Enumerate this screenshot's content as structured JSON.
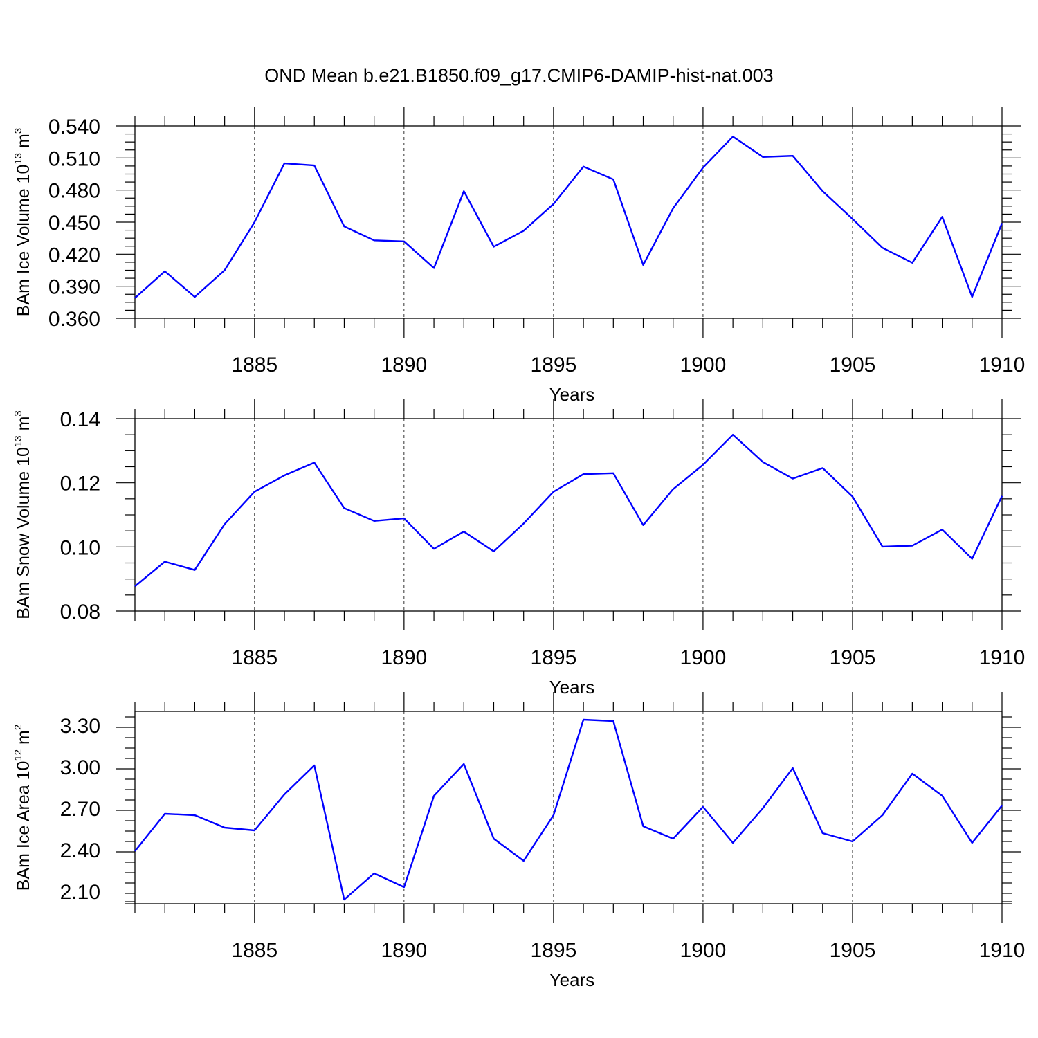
{
  "figure_title": "OND Mean b.e21.B1850.f09_g17.CMIP6-DAMIP-hist-nat.003",
  "chart_data": [
    {
      "type": "line",
      "name": "ice-volume",
      "title": "OND Mean b.e21.B1850.f09_g17.CMIP6-DAMIP-hist-nat.003",
      "xlabel": "Years",
      "ylabel_parts": {
        "main": "BAm Ice Volume 10",
        "exp": "13",
        "unit": " m",
        "unit_exp": "3"
      },
      "xlim": [
        1881,
        1910
      ],
      "ylim": [
        0.36,
        0.54
      ],
      "xticks": [
        1885,
        1890,
        1895,
        1900,
        1905,
        1910
      ],
      "xtick_labels": [
        "1885",
        "1890",
        "1895",
        "1900",
        "1905",
        "1910"
      ],
      "yticks": [
        0.36,
        0.39,
        0.42,
        0.45,
        0.48,
        0.51,
        0.54
      ],
      "ytick_labels": [
        "0.360",
        "0.390",
        "0.420",
        "0.450",
        "0.480",
        "0.510",
        "0.540"
      ],
      "grid": "vertical dashed at major x ticks",
      "line_color": "#0000ff",
      "x": [
        1881,
        1882,
        1883,
        1884,
        1885,
        1886,
        1887,
        1888,
        1889,
        1890,
        1891,
        1892,
        1893,
        1894,
        1895,
        1896,
        1897,
        1898,
        1899,
        1900,
        1901,
        1902,
        1903,
        1904,
        1905,
        1906,
        1907,
        1908,
        1909,
        1910
      ],
      "y": [
        0.379,
        0.404,
        0.38,
        0.405,
        0.45,
        0.505,
        0.503,
        0.446,
        0.433,
        0.432,
        0.407,
        0.479,
        0.427,
        0.442,
        0.467,
        0.502,
        0.49,
        0.41,
        0.463,
        0.501,
        0.53,
        0.511,
        0.512,
        0.479,
        0.453,
        0.426,
        0.412,
        0.455,
        0.38,
        0.449
      ]
    },
    {
      "type": "line",
      "name": "snow-volume",
      "xlabel": "Years",
      "ylabel_parts": {
        "main": "BAm Snow Volume 10",
        "exp": "13",
        "unit": " m",
        "unit_exp": "3"
      },
      "xlim": [
        1881,
        1910
      ],
      "ylim": [
        0.08,
        0.14
      ],
      "xticks": [
        1885,
        1890,
        1895,
        1900,
        1905,
        1910
      ],
      "xtick_labels": [
        "1885",
        "1890",
        "1895",
        "1900",
        "1905",
        "1910"
      ],
      "yticks": [
        0.08,
        0.1,
        0.12,
        0.14
      ],
      "ytick_labels": [
        "0.08",
        "0.10",
        "0.12",
        "0.14"
      ],
      "grid": "vertical dashed at major x ticks",
      "line_color": "#0000ff",
      "x": [
        1881,
        1882,
        1883,
        1884,
        1885,
        1886,
        1887,
        1888,
        1889,
        1890,
        1891,
        1892,
        1893,
        1894,
        1895,
        1896,
        1897,
        1898,
        1899,
        1900,
        1901,
        1902,
        1903,
        1904,
        1905,
        1906,
        1907,
        1908,
        1909,
        1910
      ],
      "y": [
        0.0877,
        0.0954,
        0.0928,
        0.1071,
        0.1172,
        0.1223,
        0.1263,
        0.1121,
        0.1081,
        0.1089,
        0.0994,
        0.1048,
        0.0986,
        0.1073,
        0.1172,
        0.1227,
        0.123,
        0.1068,
        0.118,
        0.1256,
        0.135,
        0.1265,
        0.1213,
        0.1246,
        0.1157,
        0.1001,
        0.1004,
        0.1054,
        0.0963,
        0.1159
      ]
    },
    {
      "type": "line",
      "name": "ice-area",
      "xlabel": "Years",
      "ylabel_parts": {
        "main": "BAm Ice Area 10",
        "exp": "12",
        "unit": " m",
        "unit_exp": "2"
      },
      "xlim": [
        1881,
        1910
      ],
      "ylim": [
        2.01,
        3.4
      ],
      "xticks": [
        1885,
        1890,
        1895,
        1900,
        1905,
        1910
      ],
      "xtick_labels": [
        "1885",
        "1890",
        "1895",
        "1900",
        "1905",
        "1910"
      ],
      "yticks": [
        2.1,
        2.4,
        2.7,
        3.0,
        3.3
      ],
      "ytick_labels": [
        "2.10",
        "2.40",
        "2.70",
        "3.00",
        "3.30"
      ],
      "grid": "vertical dashed at major x ticks",
      "line_color": "#0000ff",
      "x": [
        1881,
        1882,
        1883,
        1884,
        1885,
        1886,
        1887,
        1888,
        1889,
        1890,
        1891,
        1892,
        1893,
        1894,
        1895,
        1896,
        1897,
        1898,
        1899,
        1900,
        1901,
        1902,
        1903,
        1904,
        1905,
        1906,
        1907,
        1908,
        1909,
        1910
      ],
      "y": [
        2.39,
        2.66,
        2.65,
        2.56,
        2.54,
        2.8,
        3.01,
        2.04,
        2.23,
        2.13,
        2.79,
        3.02,
        2.48,
        2.32,
        2.65,
        3.34,
        3.33,
        2.57,
        2.48,
        2.71,
        2.45,
        2.7,
        2.99,
        2.52,
        2.46,
        2.65,
        2.95,
        2.79,
        2.45,
        2.72
      ]
    }
  ]
}
